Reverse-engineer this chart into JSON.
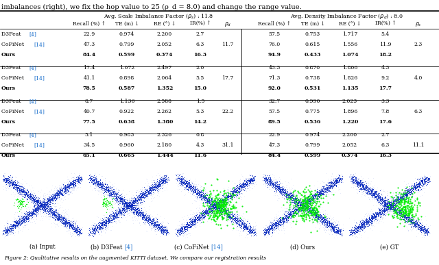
{
  "title_text": "imbalances (right), we fix the hop value to 25 (ρ_d = 8.0) and change the range value.",
  "header1": "Avg. Scale Imbalance Factor (ρ_s) : 11.8",
  "header2": "Avg. Density Imbalance Factor (ρ_d) : 8.0",
  "row_groups": [
    {
      "rho_d": "11.7",
      "rho_s": "2.3",
      "rows": [
        {
          "method": "D3Feat [4]",
          "left": [
            "22.9",
            "0.974",
            "2.200",
            "2.7"
          ],
          "right": [
            "57.5",
            "0.753",
            "1.717",
            "5.4"
          ]
        },
        {
          "method": "CoFiNet [14]",
          "left": [
            "47.3",
            "0.799",
            "2.052",
            "6.3"
          ],
          "right": [
            "76.0",
            "0.615",
            "1.556",
            "11.9"
          ]
        },
        {
          "method": "Ours",
          "left": [
            "84.4",
            "0.599",
            "0.374",
            "16.3"
          ],
          "right": [
            "94.9",
            "0.433",
            "1.074",
            "18.2"
          ]
        }
      ]
    },
    {
      "rho_d": "17.7",
      "rho_s": "4.0",
      "rows": [
        {
          "method": "D3Feat [4]",
          "left": [
            "17.4",
            "1.072",
            "2.497",
            "2.0"
          ],
          "right": [
            "43.3",
            "0.870",
            "1.806",
            "4.3"
          ]
        },
        {
          "method": "CoFiNet [14]",
          "left": [
            "41.1",
            "0.898",
            "2.064",
            "5.5"
          ],
          "right": [
            "71.3",
            "0.738",
            "1.826",
            "9.2"
          ]
        },
        {
          "method": "Ours",
          "left": [
            "78.5",
            "0.587",
            "1.352",
            "15.0"
          ],
          "right": [
            "92.0",
            "0.531",
            "1.135",
            "17.7"
          ]
        }
      ]
    },
    {
      "rho_d": "22.2",
      "rho_s": "6.3",
      "rows": [
        {
          "method": "D3Feat [4]",
          "left": [
            "8.7",
            "1.136",
            "2.588",
            "1.5"
          ],
          "right": [
            "32.7",
            "0.990",
            "2.023",
            "3.3"
          ]
        },
        {
          "method": "CoFiNet [14]",
          "left": [
            "40.7",
            "0.922",
            "2.262",
            "5.3"
          ],
          "right": [
            "57.5",
            "0.775",
            "1.896",
            "7.8"
          ]
        },
        {
          "method": "Ours",
          "left": [
            "77.5",
            "0.638",
            "1.380",
            "14.2"
          ],
          "right": [
            "89.5",
            "0.536",
            "1.220",
            "17.6"
          ]
        }
      ]
    },
    {
      "rho_d": "31.1",
      "rho_s": "11.1",
      "rows": [
        {
          "method": "D3Feat [4]",
          "left": [
            "5.1",
            "0.983",
            "2.326",
            "0.8"
          ],
          "right": [
            "22.9",
            "0.974",
            "2.200",
            "2.7"
          ]
        },
        {
          "method": "CoFiNet [14]",
          "left": [
            "34.5",
            "0.960",
            "2.180",
            "4.3"
          ],
          "right": [
            "47.3",
            "0.799",
            "2.052",
            "6.3"
          ]
        },
        {
          "method": "Ours",
          "left": [
            "65.1",
            "0.665",
            "1.444",
            "11.6"
          ],
          "right": [
            "84.4",
            "0.599",
            "0.374",
            "16.3"
          ]
        }
      ]
    }
  ],
  "subfig_labels": [
    "(a) Input",
    "(b) D3Feat [4]",
    "(c) CoFiNet [14]",
    "(d) Ours",
    "(e) GT"
  ],
  "fig_caption": "Figure 2: Qualitative results on the augmented KITTI dataset. We compare our registration results",
  "bg_color": "#ffffff",
  "text_color": "#000000",
  "blue_ref_color": "#1a6fcc"
}
